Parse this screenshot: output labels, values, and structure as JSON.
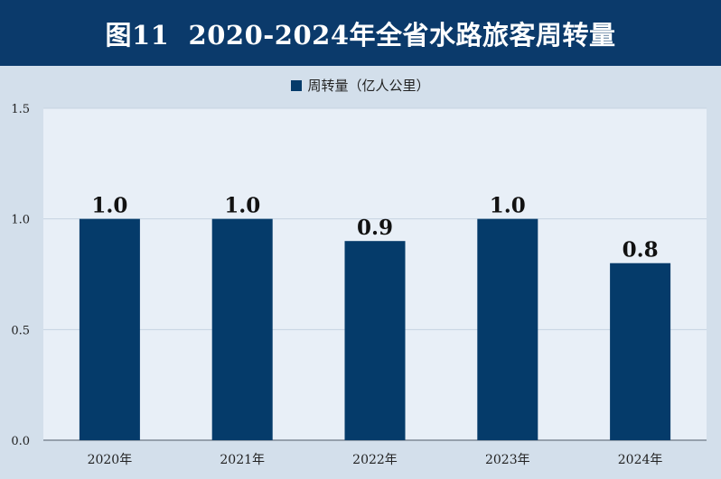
{
  "title": "图11  2020-2024年全省水路旅客周转量",
  "colors": {
    "title_bg": "#0b3a6b",
    "page_bg": "#d3dfeb",
    "plot_bg": "#e8eff7",
    "bar": "#053b6a",
    "grid": "#c6d3e2"
  },
  "chart_data": {
    "type": "bar",
    "categories": [
      "2020年",
      "2021年",
      "2022年",
      "2023年",
      "2024年"
    ],
    "series": [
      {
        "name": "周转量（亿人公里）",
        "values": [
          1.0,
          1.0,
          0.9,
          1.0,
          0.8
        ]
      }
    ],
    "data_labels": [
      "1.0",
      "1.0",
      "0.9",
      "1.0",
      "0.8"
    ],
    "y_ticks": [
      "0.0",
      "0.5",
      "1.0",
      "1.5"
    ],
    "ylim": [
      0,
      1.5
    ],
    "grid": true,
    "legend_position": "top-center"
  }
}
